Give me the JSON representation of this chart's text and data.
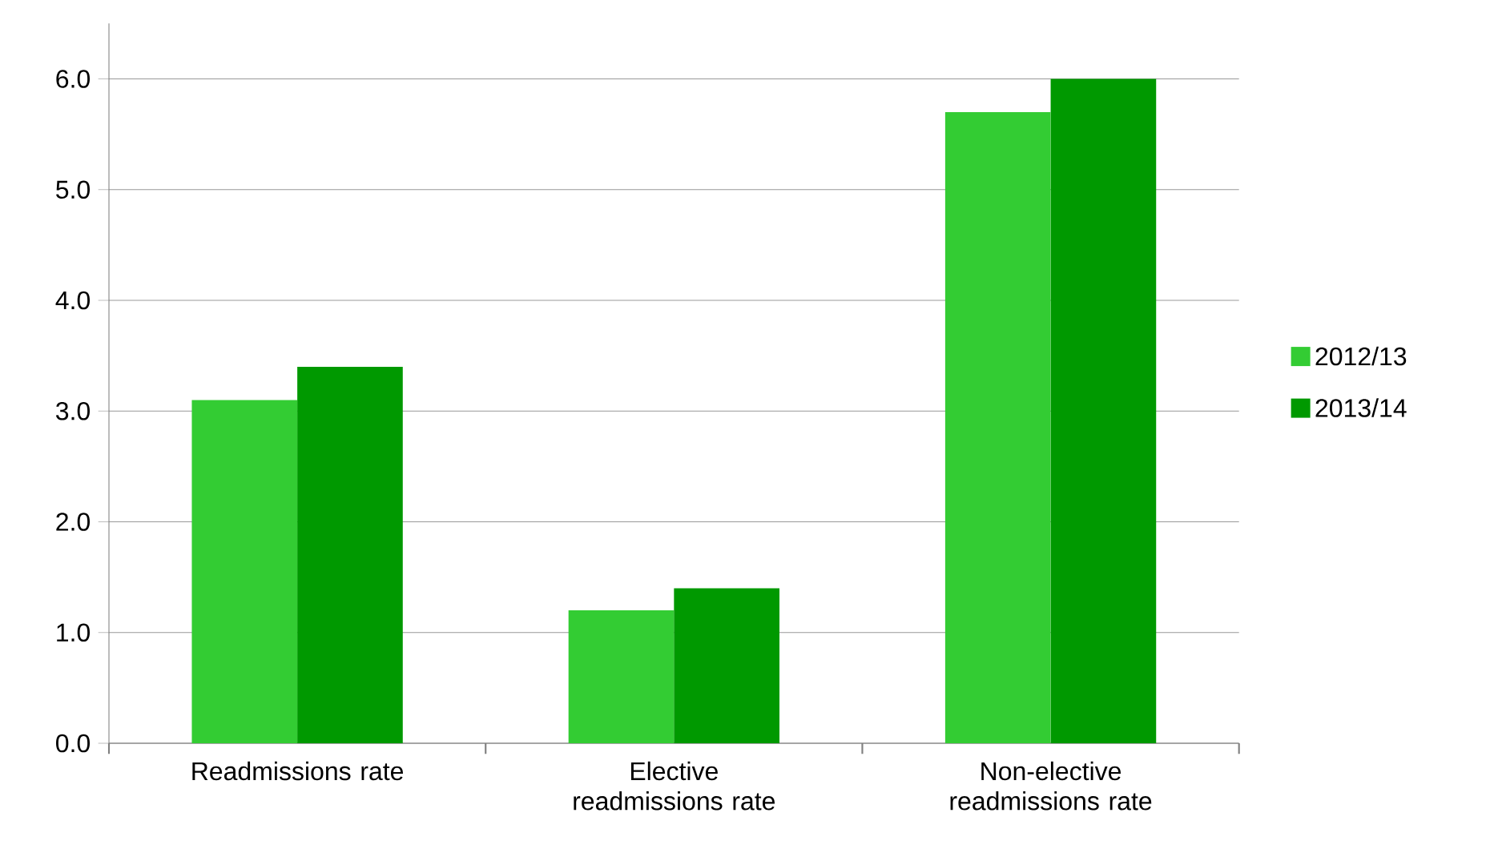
{
  "chart_data": {
    "type": "bar",
    "categories": [
      "Readmissions rate",
      "Elective readmissions rate",
      "Non-elective readmissions rate"
    ],
    "series": [
      {
        "name": "2012/13",
        "color": "#33cc33",
        "values": [
          3.1,
          1.2,
          5.7
        ]
      },
      {
        "name": "2013/14",
        "color": "#009900",
        "values": [
          3.4,
          1.4,
          6.0
        ]
      }
    ],
    "ylim": [
      0,
      6.5
    ],
    "yticks": [
      {
        "value": 0,
        "label": "0.0"
      },
      {
        "value": 1,
        "label": "1.0"
      },
      {
        "value": 2,
        "label": "2.0"
      },
      {
        "value": 3,
        "label": "3.0"
      },
      {
        "value": 4,
        "label": "4.0"
      },
      {
        "value": 5,
        "label": "5.0"
      },
      {
        "value": 6,
        "label": "6.0"
      }
    ],
    "grid": "y",
    "legend": "right"
  }
}
